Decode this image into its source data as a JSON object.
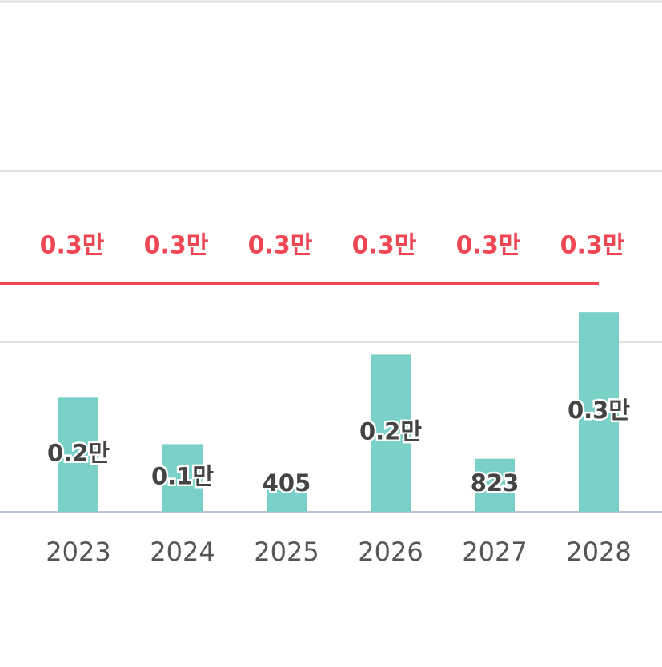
{
  "chart_data": {
    "type": "bar",
    "categories": [
      "2023",
      "2024",
      "2025",
      "2026",
      "2027",
      "2028"
    ],
    "ylim": [
      0,
      3400
    ],
    "y2lim": [
      0,
      4300
    ],
    "series": [
      {
        "type": "bar",
        "color": "#79d1c8",
        "values": [
          1770,
          1050,
          405,
          2440,
          823,
          3100
        ],
        "value_labels": [
          "0.2만",
          "0.1만",
          "405",
          "0.2만",
          "823",
          "0.3만"
        ]
      },
      {
        "type": "line",
        "axis": "y2",
        "color": "#ef4653",
        "values": [
          3000,
          3000,
          3000,
          3000,
          3000,
          3000
        ],
        "value_labels": [
          "0.3만",
          "0.3만",
          "0.3만",
          "0.3만",
          "0.3만",
          "0.3만"
        ]
      }
    ]
  }
}
